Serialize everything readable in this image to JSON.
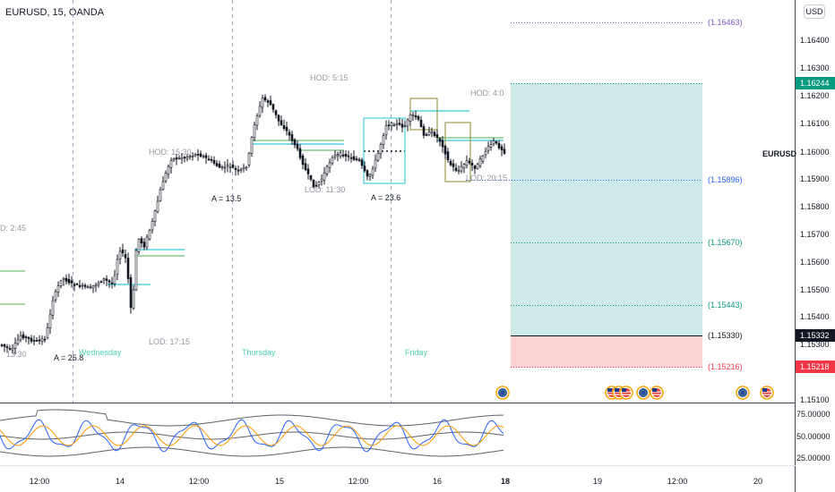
{
  "header": {
    "symbol_info": "EURUSD, 15, OANDA",
    "currency": "USD"
  },
  "price_axis": {
    "ticks": [
      "1.16400",
      "1.16300",
      "1.16200",
      "1.16100",
      "1.16000",
      "1.15900",
      "1.15800",
      "1.15700",
      "1.15600",
      "1.15500",
      "1.15400",
      "1.15300",
      "1.15100"
    ],
    "symbol_label": "EURUSD",
    "badges": [
      {
        "text": "1.16244",
        "color": "#089981"
      },
      {
        "text": "1.15332",
        "color": "#131722"
      },
      {
        "text": "1.15218",
        "color": "#f23645"
      }
    ]
  },
  "position_tool": {
    "levels": [
      {
        "text": "(1.16463)",
        "color": "#7e57c2"
      },
      {
        "text": "(1.15896)",
        "color": "#2962ff"
      },
      {
        "text": "(1.15670)",
        "color": "#089981"
      },
      {
        "text": "(1.15443)",
        "color": "#089981"
      },
      {
        "text": "(1.15330)",
        "color": "#131722"
      },
      {
        "text": "(1.15216)",
        "color": "#f23645"
      }
    ],
    "profit_color": "#b2dfdb",
    "loss_color": "#fccbcd"
  },
  "annotations": [
    {
      "text": "D: 2:45",
      "color": "#9598a1"
    },
    {
      "text": "13:30",
      "color": "#9598a1"
    },
    {
      "text": "A = 25.8",
      "color": "#131722"
    },
    {
      "text": "Wednesday",
      "color": "#4dd0b1"
    },
    {
      "text": "LOD: 17:15",
      "color": "#9598a1"
    },
    {
      "text": "HOD: 15:30",
      "color": "#9598a1"
    },
    {
      "text": "A = 13.5",
      "color": "#131722"
    },
    {
      "text": "Thursday",
      "color": "#4dd0b1"
    },
    {
      "text": "HOD: 5:15",
      "color": "#9598a1"
    },
    {
      "text": "LOD: 11:30",
      "color": "#9598a1"
    },
    {
      "text": "A = 23.6",
      "color": "#131722"
    },
    {
      "text": "Friday",
      "color": "#4dd0b1"
    },
    {
      "text": "HOD: 4:0",
      "color": "#9598a1"
    },
    {
      "text": "LOD: 20:15",
      "color": "#9598a1"
    }
  ],
  "oscillator_axis": {
    "ticks": [
      "75.00000",
      "50.00000",
      "25.00000"
    ]
  },
  "time_axis": {
    "labels": [
      "12:00",
      "14",
      "12:00",
      "15",
      "12:00",
      "16",
      "18",
      "19",
      "12:00",
      "20"
    ]
  },
  "event_icons": [
    "eu-flag",
    "us-flag",
    "us-flag",
    "us-flag",
    "eu-flag",
    "us-flag",
    "eu-flag",
    "us-flag"
  ]
}
